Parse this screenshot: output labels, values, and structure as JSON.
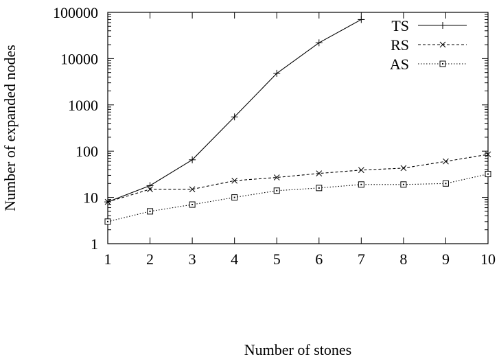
{
  "chart_data": {
    "type": "line",
    "xlabel": "Number of stones",
    "ylabel": "Number of expanded nodes",
    "xlim": [
      1,
      10
    ],
    "ylim": [
      1,
      100000
    ],
    "yscale": "log",
    "x_ticks": [
      "1",
      "2",
      "3",
      "4",
      "5",
      "6",
      "7",
      "8",
      "9",
      "10"
    ],
    "y_ticks": [
      "1",
      "10",
      "100",
      "1000",
      "10000",
      "100000"
    ],
    "grid": false,
    "legend_position": "top-right",
    "series": [
      {
        "name": "TS",
        "marker": "plus",
        "dash": "solid",
        "x": [
          1,
          2,
          3,
          4,
          5,
          6,
          7
        ],
        "y": [
          8,
          18,
          65,
          550,
          4800,
          22000,
          70000
        ]
      },
      {
        "name": "RS",
        "marker": "cross",
        "dash": "dashed",
        "x": [
          1,
          2,
          3,
          4,
          5,
          6,
          7,
          8,
          9,
          10
        ],
        "y": [
          8,
          15,
          15,
          23,
          27,
          33,
          39,
          43,
          60,
          85
        ]
      },
      {
        "name": "AS",
        "marker": "square",
        "dash": "dotted",
        "x": [
          1,
          2,
          3,
          4,
          5,
          6,
          7,
          8,
          9,
          10
        ],
        "y": [
          3,
          5,
          7,
          10,
          14,
          16,
          19,
          19,
          20,
          32
        ]
      }
    ]
  }
}
